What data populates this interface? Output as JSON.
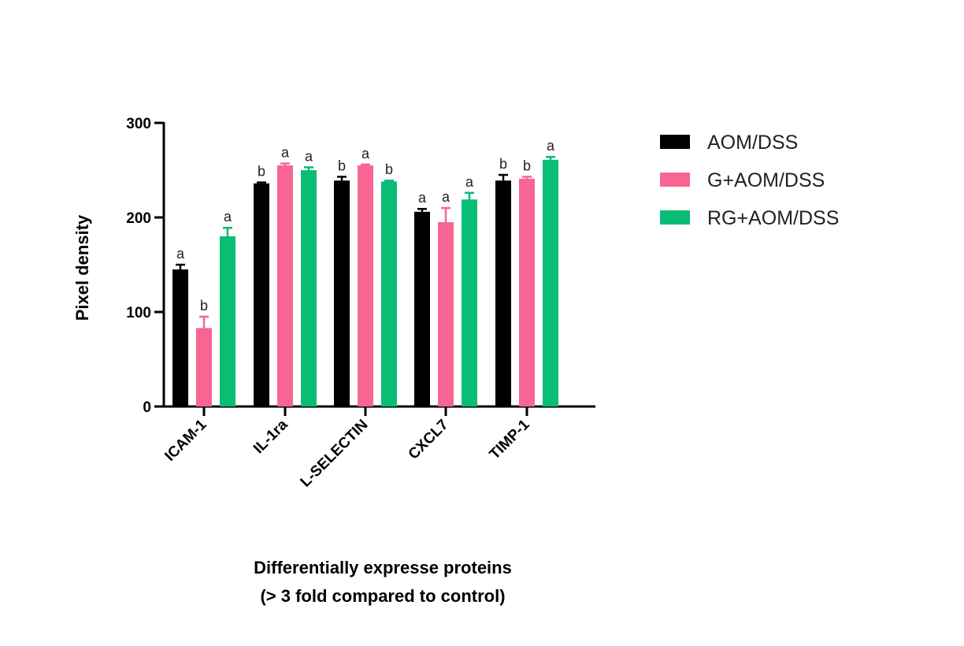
{
  "chart_data": {
    "type": "bar",
    "title": "",
    "xlabel": [
      "Differentially expresse proteins",
      "(> 3 fold compared to control)"
    ],
    "ylabel": "Pixel density",
    "ylim": [
      0,
      300
    ],
    "yticks": [
      0,
      100,
      200,
      300
    ],
    "grid": false,
    "legend_position": "right",
    "categories": [
      "ICAM-1",
      "IL-1ra",
      "L-SELECTIN",
      "CXCL7",
      "TIMP-1"
    ],
    "series": [
      {
        "name": "AOM/DSS",
        "color": "#000000",
        "values": [
          145,
          236,
          239,
          206,
          239
        ],
        "errors": [
          5,
          1,
          4,
          3,
          6
        ],
        "significance": [
          "a",
          "b",
          "b",
          "a",
          "b"
        ]
      },
      {
        "name": "G+AOM/DSS",
        "color": "#F76593",
        "values": [
          83,
          255,
          255,
          195,
          241
        ],
        "errors": [
          12,
          2,
          1,
          15,
          2
        ],
        "significance": [
          "b",
          "a",
          "a",
          "a",
          "b"
        ]
      },
      {
        "name": "RG+AOM/DSS",
        "color": "#09BD75",
        "values": [
          180,
          250,
          238,
          219,
          261
        ],
        "errors": [
          9,
          3,
          1,
          7,
          3
        ],
        "significance": [
          "a",
          "a",
          "b",
          "a",
          "a"
        ]
      }
    ]
  }
}
